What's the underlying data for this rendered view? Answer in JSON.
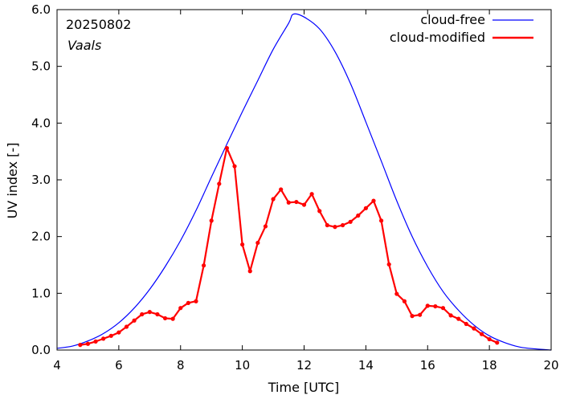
{
  "chart_data": {
    "type": "line",
    "title": "",
    "xlabel": "Time  [UTC]",
    "ylabel": "UV index  [-]",
    "xlim": [
      4,
      20
    ],
    "ylim": [
      0,
      6
    ],
    "xticks": [
      4,
      6,
      8,
      10,
      12,
      14,
      16,
      18,
      20
    ],
    "yticks": [
      0,
      1,
      2,
      3,
      4,
      5,
      6
    ],
    "xtick_labels": [
      "4",
      "6",
      "8",
      "10",
      "12",
      "14",
      "16",
      "18",
      "20"
    ],
    "ytick_labels": [
      "0.0",
      "1.0",
      "2.0",
      "3.0",
      "4.0",
      "5.0",
      "6.0"
    ],
    "annotations": [
      "20250802",
      "Vaals"
    ],
    "legend": {
      "placement": "top-right",
      "entries": [
        "cloud-free",
        "cloud-modified"
      ]
    },
    "grid": false,
    "series": [
      {
        "name": "cloud-free",
        "color": "#0000ff",
        "marker": false,
        "x": [
          4.0,
          4.5,
          5.0,
          5.5,
          6.0,
          6.5,
          7.0,
          7.5,
          8.0,
          8.5,
          9.0,
          9.5,
          10.0,
          10.5,
          11.0,
          11.5,
          11.65,
          12.0,
          12.5,
          13.0,
          13.5,
          14.0,
          14.5,
          15.0,
          15.5,
          16.0,
          16.5,
          17.0,
          17.5,
          18.0,
          18.5,
          19.0,
          19.5,
          20.0
        ],
        "y": [
          0.03,
          0.07,
          0.16,
          0.29,
          0.48,
          0.74,
          1.07,
          1.47,
          1.93,
          2.46,
          3.05,
          3.63,
          4.2,
          4.75,
          5.3,
          5.76,
          5.92,
          5.87,
          5.66,
          5.26,
          4.7,
          4.02,
          3.33,
          2.63,
          2.0,
          1.47,
          1.03,
          0.7,
          0.44,
          0.25,
          0.13,
          0.05,
          0.02,
          0.0
        ]
      },
      {
        "name": "cloud-modified",
        "color": "#ff0000",
        "marker": true,
        "x": [
          4.75,
          5.0,
          5.25,
          5.5,
          5.75,
          6.0,
          6.25,
          6.5,
          6.75,
          7.0,
          7.25,
          7.5,
          7.75,
          8.0,
          8.25,
          8.5,
          8.75,
          9.0,
          9.25,
          9.5,
          9.75,
          10.0,
          10.25,
          10.5,
          10.75,
          11.0,
          11.25,
          11.5,
          11.75,
          12.0,
          12.25,
          12.5,
          12.75,
          13.0,
          13.25,
          13.5,
          13.75,
          14.0,
          14.25,
          14.5,
          14.75,
          15.0,
          15.25,
          15.5,
          15.75,
          16.0,
          16.25,
          16.5,
          16.75,
          17.0,
          17.25,
          17.5,
          17.75,
          18.0,
          18.25
        ],
        "y": [
          0.09,
          0.11,
          0.15,
          0.2,
          0.25,
          0.31,
          0.41,
          0.52,
          0.63,
          0.67,
          0.63,
          0.56,
          0.55,
          0.74,
          0.83,
          0.86,
          1.49,
          2.28,
          2.93,
          3.56,
          3.24,
          1.86,
          1.39,
          1.89,
          2.18,
          2.66,
          2.83,
          2.6,
          2.61,
          2.56,
          2.75,
          2.45,
          2.2,
          2.17,
          2.2,
          2.26,
          2.37,
          2.5,
          2.63,
          2.28,
          1.51,
          0.99,
          0.86,
          0.6,
          0.62,
          0.78,
          0.77,
          0.74,
          0.61,
          0.55,
          0.46,
          0.38,
          0.28,
          0.19,
          0.13
        ]
      }
    ]
  }
}
